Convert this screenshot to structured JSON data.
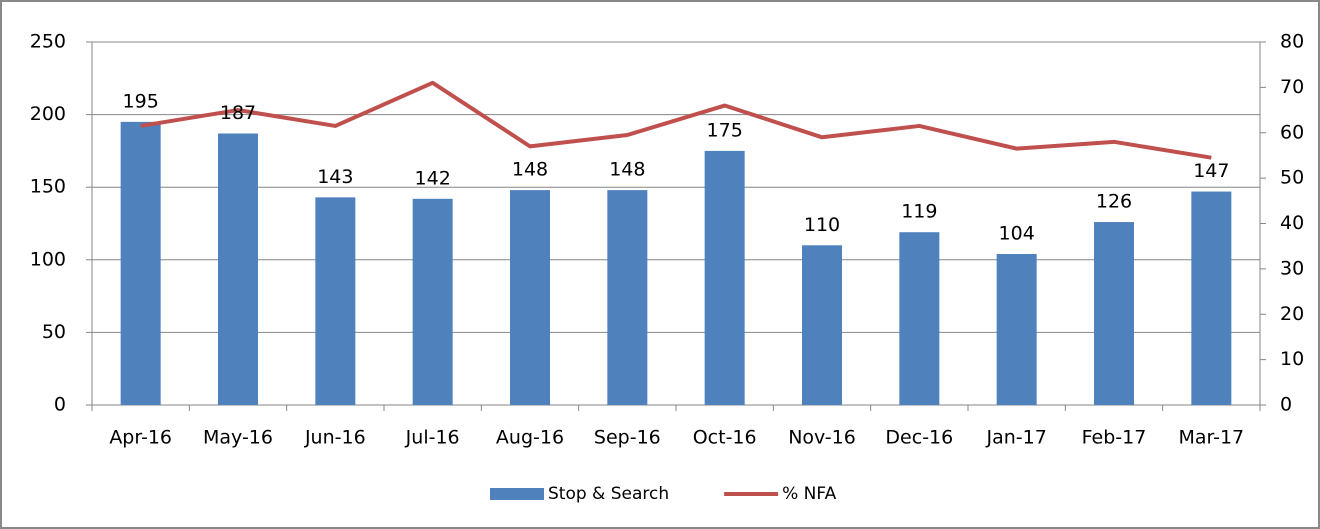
{
  "chart_data": {
    "type": "bar",
    "categories": [
      "Apr-16",
      "May-16",
      "Jun-16",
      "Jul-16",
      "Aug-16",
      "Sep-16",
      "Oct-16",
      "Nov-16",
      "Dec-16",
      "Jan-17",
      "Feb-17",
      "Mar-17"
    ],
    "series": [
      {
        "name": "Stop & Search",
        "type": "bar",
        "color": "#4f81bd",
        "values": [
          195,
          187,
          143,
          142,
          148,
          148,
          175,
          110,
          119,
          104,
          126,
          147
        ]
      },
      {
        "name": "% NFA",
        "type": "line",
        "axis": "y2",
        "color": "#c0504d",
        "values": [
          61.5,
          65,
          61.5,
          71,
          57,
          59.5,
          66,
          59,
          61.5,
          56.5,
          58,
          54.5
        ]
      }
    ],
    "ylim": [
      0,
      250
    ],
    "yticks": [
      0,
      50,
      100,
      150,
      200,
      250
    ],
    "y2lim": [
      0,
      80
    ],
    "y2ticks": [
      0,
      10,
      20,
      30,
      40,
      50,
      60,
      70,
      80
    ],
    "grid": true,
    "legend": "bottom"
  }
}
